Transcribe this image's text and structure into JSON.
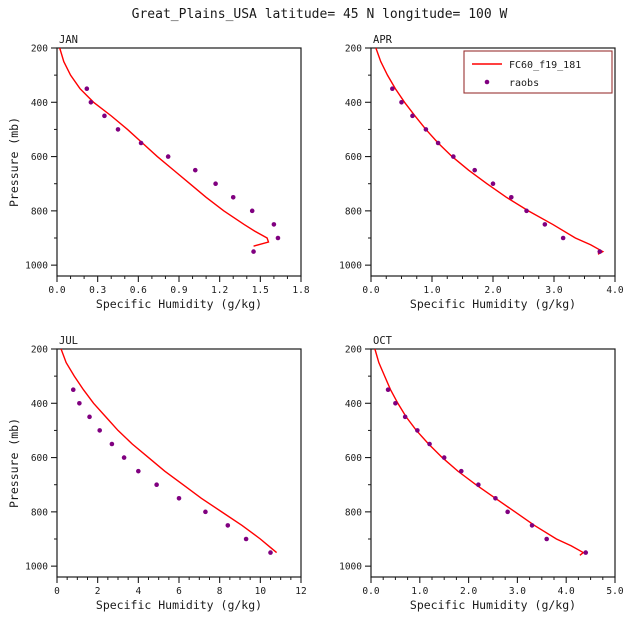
{
  "title": "Great_Plains_USA  latitude= 45 N longitude= 100 W",
  "colors": {
    "text": "#1a1a1a",
    "frame": "#1a1a1a",
    "model_line": "#ff0000",
    "obs_dot": "#800080",
    "legend_border": "#993333",
    "background": "#ffffff"
  },
  "axis": {
    "ylabel": "Pressure (mb)",
    "xlabel": "Specific Humidity (g/kg)",
    "y": {
      "top": 200,
      "bottom_edge": 1040,
      "major_ticks": [
        200,
        400,
        600,
        800,
        1000
      ],
      "tick_labels": [
        "200",
        "400",
        "600",
        "800",
        "1000"
      ],
      "minor_ticks": [
        300,
        500,
        700,
        900
      ]
    }
  },
  "legend": {
    "entries": [
      {
        "label": "FC60_f19_181",
        "marker": "line"
      },
      {
        "label": "raobs",
        "marker": "dot"
      }
    ]
  },
  "chart_data": [
    {
      "type": "line-scatter",
      "label": "JAN",
      "show_legend": false,
      "show_ylabel": true,
      "x_axis": {
        "min": 0.0,
        "max": 1.8,
        "major_ticks": [
          0.0,
          0.3,
          0.6,
          0.9,
          1.2,
          1.5,
          1.8
        ],
        "tick_labels": [
          "0.0",
          "0.3",
          "0.6",
          "0.9",
          "1.2",
          "1.5",
          "1.8"
        ],
        "minor_step": 0.1
      },
      "series": [
        {
          "name": "FC60_f19_181",
          "type": "line",
          "pressure": [
            200,
            250,
            300,
            350,
            400,
            450,
            500,
            550,
            600,
            650,
            700,
            750,
            800,
            850,
            875,
            900,
            915,
            930
          ],
          "x": [
            0.02,
            0.05,
            0.1,
            0.17,
            0.27,
            0.4,
            0.52,
            0.63,
            0.74,
            0.86,
            0.98,
            1.1,
            1.23,
            1.38,
            1.46,
            1.55,
            1.56,
            1.45
          ]
        },
        {
          "name": "raobs",
          "type": "scatter",
          "pressure": [
            350,
            400,
            450,
            500,
            550,
            600,
            650,
            700,
            750,
            800,
            850,
            900,
            950
          ],
          "x": [
            0.22,
            0.25,
            0.35,
            0.45,
            0.62,
            0.82,
            1.02,
            1.17,
            1.3,
            1.44,
            1.6,
            1.63,
            1.45
          ]
        }
      ]
    },
    {
      "type": "line-scatter",
      "label": "APR",
      "show_legend": true,
      "show_ylabel": false,
      "x_axis": {
        "min": 0.0,
        "max": 4.0,
        "major_ticks": [
          0.0,
          1.0,
          2.0,
          3.0,
          4.0
        ],
        "tick_labels": [
          "0.0",
          "1.0",
          "2.0",
          "3.0",
          "4.0"
        ],
        "minor_step": 0.25
      },
      "series": [
        {
          "name": "FC60_f19_181",
          "type": "line",
          "pressure": [
            200,
            250,
            300,
            350,
            400,
            450,
            500,
            550,
            600,
            650,
            700,
            750,
            800,
            850,
            900,
            925,
            950,
            960
          ],
          "x": [
            0.08,
            0.16,
            0.27,
            0.4,
            0.55,
            0.72,
            0.9,
            1.1,
            1.33,
            1.6,
            1.9,
            2.22,
            2.58,
            2.98,
            3.35,
            3.6,
            3.8,
            3.72
          ]
        },
        {
          "name": "raobs",
          "type": "scatter",
          "pressure": [
            350,
            400,
            450,
            500,
            550,
            600,
            650,
            700,
            750,
            800,
            850,
            900,
            950
          ],
          "x": [
            0.35,
            0.5,
            0.68,
            0.9,
            1.1,
            1.35,
            1.7,
            2.0,
            2.3,
            2.55,
            2.85,
            3.15,
            3.75
          ]
        }
      ]
    },
    {
      "type": "line-scatter",
      "label": "JUL",
      "show_legend": false,
      "show_ylabel": true,
      "x_axis": {
        "min": 0,
        "max": 12,
        "major_ticks": [
          0,
          2,
          4,
          6,
          8,
          10,
          12
        ],
        "tick_labels": [
          "0",
          "2",
          "4",
          "6",
          "8",
          "10",
          "12"
        ],
        "minor_step": 0.5
      },
      "series": [
        {
          "name": "FC60_f19_181",
          "type": "line",
          "pressure": [
            200,
            250,
            300,
            350,
            400,
            450,
            500,
            550,
            600,
            650,
            700,
            750,
            800,
            850,
            900,
            925,
            950
          ],
          "x": [
            0.2,
            0.45,
            0.85,
            1.3,
            1.8,
            2.4,
            3.0,
            3.7,
            4.5,
            5.3,
            6.2,
            7.1,
            8.1,
            9.1,
            10.0,
            10.4,
            10.8
          ]
        },
        {
          "name": "raobs",
          "type": "scatter",
          "pressure": [
            350,
            400,
            450,
            500,
            550,
            600,
            650,
            700,
            750,
            800,
            850,
            900,
            950
          ],
          "x": [
            0.8,
            1.1,
            1.6,
            2.1,
            2.7,
            3.3,
            4.0,
            4.9,
            6.0,
            7.3,
            8.4,
            9.3,
            10.5
          ]
        }
      ]
    },
    {
      "type": "line-scatter",
      "label": "OCT",
      "show_legend": false,
      "show_ylabel": false,
      "x_axis": {
        "min": 0.0,
        "max": 5.0,
        "major_ticks": [
          0.0,
          1.0,
          2.0,
          3.0,
          4.0,
          5.0
        ],
        "tick_labels": [
          "0.0",
          "1.0",
          "2.0",
          "3.0",
          "4.0",
          "5.0"
        ],
        "minor_step": 0.25
      },
      "series": [
        {
          "name": "FC60_f19_181",
          "type": "line",
          "pressure": [
            200,
            250,
            300,
            350,
            400,
            450,
            500,
            550,
            600,
            650,
            700,
            750,
            800,
            850,
            900,
            925,
            950,
            960
          ],
          "x": [
            0.08,
            0.16,
            0.28,
            0.4,
            0.55,
            0.72,
            0.93,
            1.18,
            1.46,
            1.78,
            2.15,
            2.55,
            2.95,
            3.35,
            3.8,
            4.1,
            4.35,
            4.28
          ]
        },
        {
          "name": "raobs",
          "type": "scatter",
          "pressure": [
            350,
            400,
            450,
            500,
            550,
            600,
            650,
            700,
            750,
            800,
            850,
            900,
            950
          ],
          "x": [
            0.35,
            0.5,
            0.7,
            0.95,
            1.2,
            1.5,
            1.85,
            2.2,
            2.55,
            2.8,
            3.3,
            3.6,
            4.4
          ]
        }
      ]
    }
  ]
}
